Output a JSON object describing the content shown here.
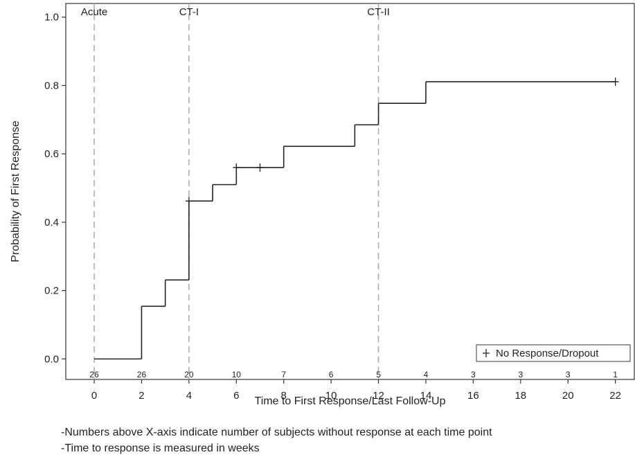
{
  "chart_data": {
    "type": "line",
    "step": true,
    "xlabel": "Time to First Response/Last Follow-Up",
    "ylabel": "Probability of First Response",
    "xlim": [
      -1.2,
      22.8
    ],
    "ylim": [
      -0.06,
      1.04
    ],
    "x_ticks": [
      0,
      2,
      4,
      6,
      8,
      10,
      12,
      14,
      16,
      18,
      20,
      22
    ],
    "y_ticks": [
      "0.0",
      "0.2",
      "0.4",
      "0.6",
      "0.8",
      "1.0"
    ],
    "grid": false,
    "series": [
      {
        "points": [
          [
            0,
            0.0
          ],
          [
            2,
            0.0
          ],
          [
            2,
            0.154
          ],
          [
            3,
            0.154
          ],
          [
            3,
            0.231
          ],
          [
            4,
            0.231
          ],
          [
            4,
            0.462
          ],
          [
            5,
            0.462
          ],
          [
            5,
            0.51
          ],
          [
            6,
            0.51
          ],
          [
            6,
            0.56
          ],
          [
            8,
            0.56
          ],
          [
            8,
            0.622
          ],
          [
            11,
            0.622
          ],
          [
            11,
            0.685
          ],
          [
            12,
            0.685
          ],
          [
            12,
            0.748
          ],
          [
            14,
            0.748
          ],
          [
            14,
            0.811
          ],
          [
            22,
            0.811
          ]
        ]
      }
    ],
    "censored": [
      [
        4,
        0.462
      ],
      [
        6,
        0.56
      ],
      [
        7,
        0.56
      ],
      [
        22,
        0.811
      ]
    ],
    "phase_lines": [
      {
        "x": 0,
        "label": "Acute"
      },
      {
        "x": 4,
        "label": "CT-I"
      },
      {
        "x": 12,
        "label": "CT-II"
      }
    ],
    "at_risk": [
      {
        "x": 0,
        "n": "26"
      },
      {
        "x": 2,
        "n": "26"
      },
      {
        "x": 4,
        "n": "20"
      },
      {
        "x": 6,
        "n": "10"
      },
      {
        "x": 8,
        "n": "7"
      },
      {
        "x": 10,
        "n": "6"
      },
      {
        "x": 12,
        "n": "5"
      },
      {
        "x": 14,
        "n": "4"
      },
      {
        "x": 16,
        "n": "3"
      },
      {
        "x": 18,
        "n": "3"
      },
      {
        "x": 20,
        "n": "3"
      },
      {
        "x": 22,
        "n": "1"
      }
    ],
    "legend": {
      "label": "No Response/Dropout",
      "position": "bottom-right"
    }
  },
  "notes": [
    "-Numbers above X-axis indicate number of subjects without response at each time point",
    "-Time to response is measured in weeks"
  ],
  "colors": {
    "line": "#222222",
    "phase_line": "#a8a8a8",
    "axis": "#333333"
  }
}
